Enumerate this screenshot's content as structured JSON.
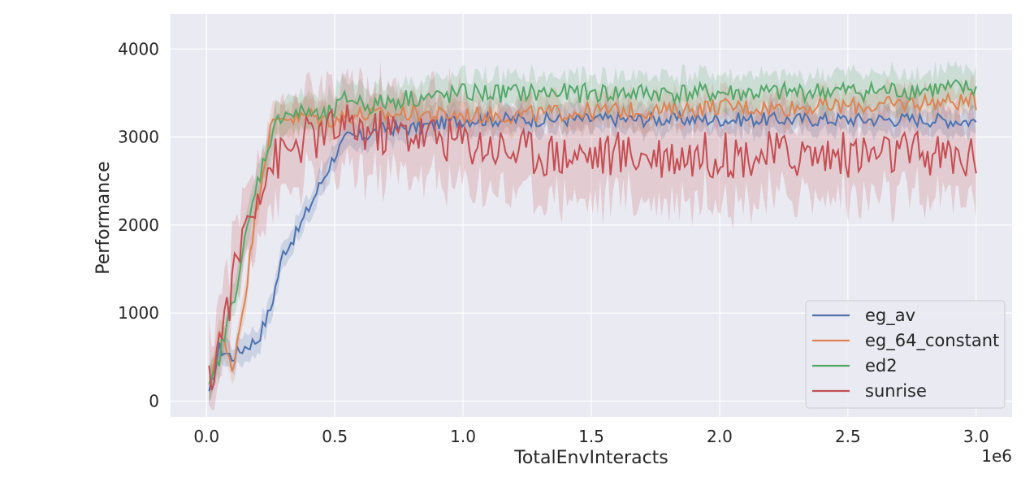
{
  "chart_data": {
    "type": "line",
    "xlabel": "TotalEnvInteracts",
    "ylabel": "Performance",
    "x_offset_label": "1e6",
    "xlim": [
      -0.14,
      3.14
    ],
    "ylim": [
      -180,
      4400
    ],
    "xticks": [
      0.0,
      0.5,
      1.0,
      1.5,
      2.0,
      2.5,
      3.0
    ],
    "xtick_labels": [
      "0.0",
      "0.5",
      "1.0",
      "1.5",
      "2.0",
      "2.5",
      "3.0"
    ],
    "yticks": [
      0,
      1000,
      2000,
      3000,
      4000
    ],
    "ytick_labels": [
      "0",
      "1000",
      "2000",
      "3000",
      "4000"
    ],
    "grid": true,
    "legend_position": "lower-right",
    "series": [
      {
        "name": "eg_av",
        "color": "#4c72b0",
        "x": [
          0.01,
          0.05,
          0.1,
          0.15,
          0.2,
          0.25,
          0.3,
          0.35,
          0.4,
          0.45,
          0.5,
          0.55,
          0.6,
          0.65,
          0.7,
          0.8,
          0.9,
          1.0,
          1.2,
          1.4,
          1.6,
          1.8,
          2.0,
          2.2,
          2.4,
          2.6,
          2.8,
          3.0
        ],
        "y": [
          50,
          600,
          500,
          620,
          700,
          1050,
          1700,
          1900,
          2200,
          2500,
          2800,
          3000,
          3000,
          3050,
          3100,
          3100,
          3150,
          3200,
          3200,
          3200,
          3200,
          3200,
          3200,
          3200,
          3200,
          3200,
          3200,
          3180
        ],
        "band": 180
      },
      {
        "name": "eg_64_constant",
        "color": "#dd8452",
        "x": [
          0.01,
          0.05,
          0.1,
          0.15,
          0.2,
          0.25,
          0.3,
          0.35,
          0.4,
          0.45,
          0.5,
          0.55,
          0.6,
          0.65,
          0.7,
          0.8,
          0.9,
          1.0,
          1.2,
          1.4,
          1.6,
          1.8,
          2.0,
          2.2,
          2.4,
          2.6,
          2.8,
          3.0
        ],
        "y": [
          100,
          800,
          350,
          1200,
          2300,
          3100,
          3250,
          3200,
          3250,
          3200,
          3200,
          3250,
          3250,
          3250,
          3250,
          3280,
          3250,
          3250,
          3250,
          3280,
          3300,
          3300,
          3350,
          3330,
          3350,
          3350,
          3400,
          3400
        ],
        "band": 220
      },
      {
        "name": "ed2",
        "color": "#55a868",
        "x": [
          0.01,
          0.05,
          0.1,
          0.15,
          0.2,
          0.25,
          0.3,
          0.35,
          0.4,
          0.45,
          0.5,
          0.55,
          0.6,
          0.65,
          0.7,
          0.8,
          0.9,
          1.0,
          1.2,
          1.4,
          1.6,
          1.8,
          2.0,
          2.2,
          2.4,
          2.6,
          2.8,
          3.0
        ],
        "y": [
          100,
          500,
          1100,
          1800,
          2500,
          3000,
          3300,
          3250,
          3300,
          3200,
          3300,
          3450,
          3400,
          3350,
          3400,
          3450,
          3450,
          3500,
          3500,
          3500,
          3500,
          3500,
          3500,
          3500,
          3520,
          3520,
          3540,
          3550
        ],
        "band": 250
      },
      {
        "name": "sunrise",
        "color": "#c44e52",
        "x": [
          0.01,
          0.05,
          0.1,
          0.15,
          0.2,
          0.25,
          0.3,
          0.35,
          0.4,
          0.45,
          0.5,
          0.55,
          0.6,
          0.65,
          0.7,
          0.8,
          0.9,
          1.0,
          1.2,
          1.4,
          1.6,
          1.8,
          2.0,
          2.2,
          2.4,
          2.6,
          2.8,
          3.0
        ],
        "y": [
          150,
          700,
          1300,
          2000,
          2400,
          2700,
          2800,
          2900,
          3000,
          3000,
          3100,
          3100,
          3100,
          3050,
          3050,
          3050,
          3000,
          2950,
          2850,
          2800,
          2800,
          2800,
          2800,
          2800,
          2800,
          2800,
          2800,
          2750
        ],
        "band": 600
      }
    ]
  }
}
